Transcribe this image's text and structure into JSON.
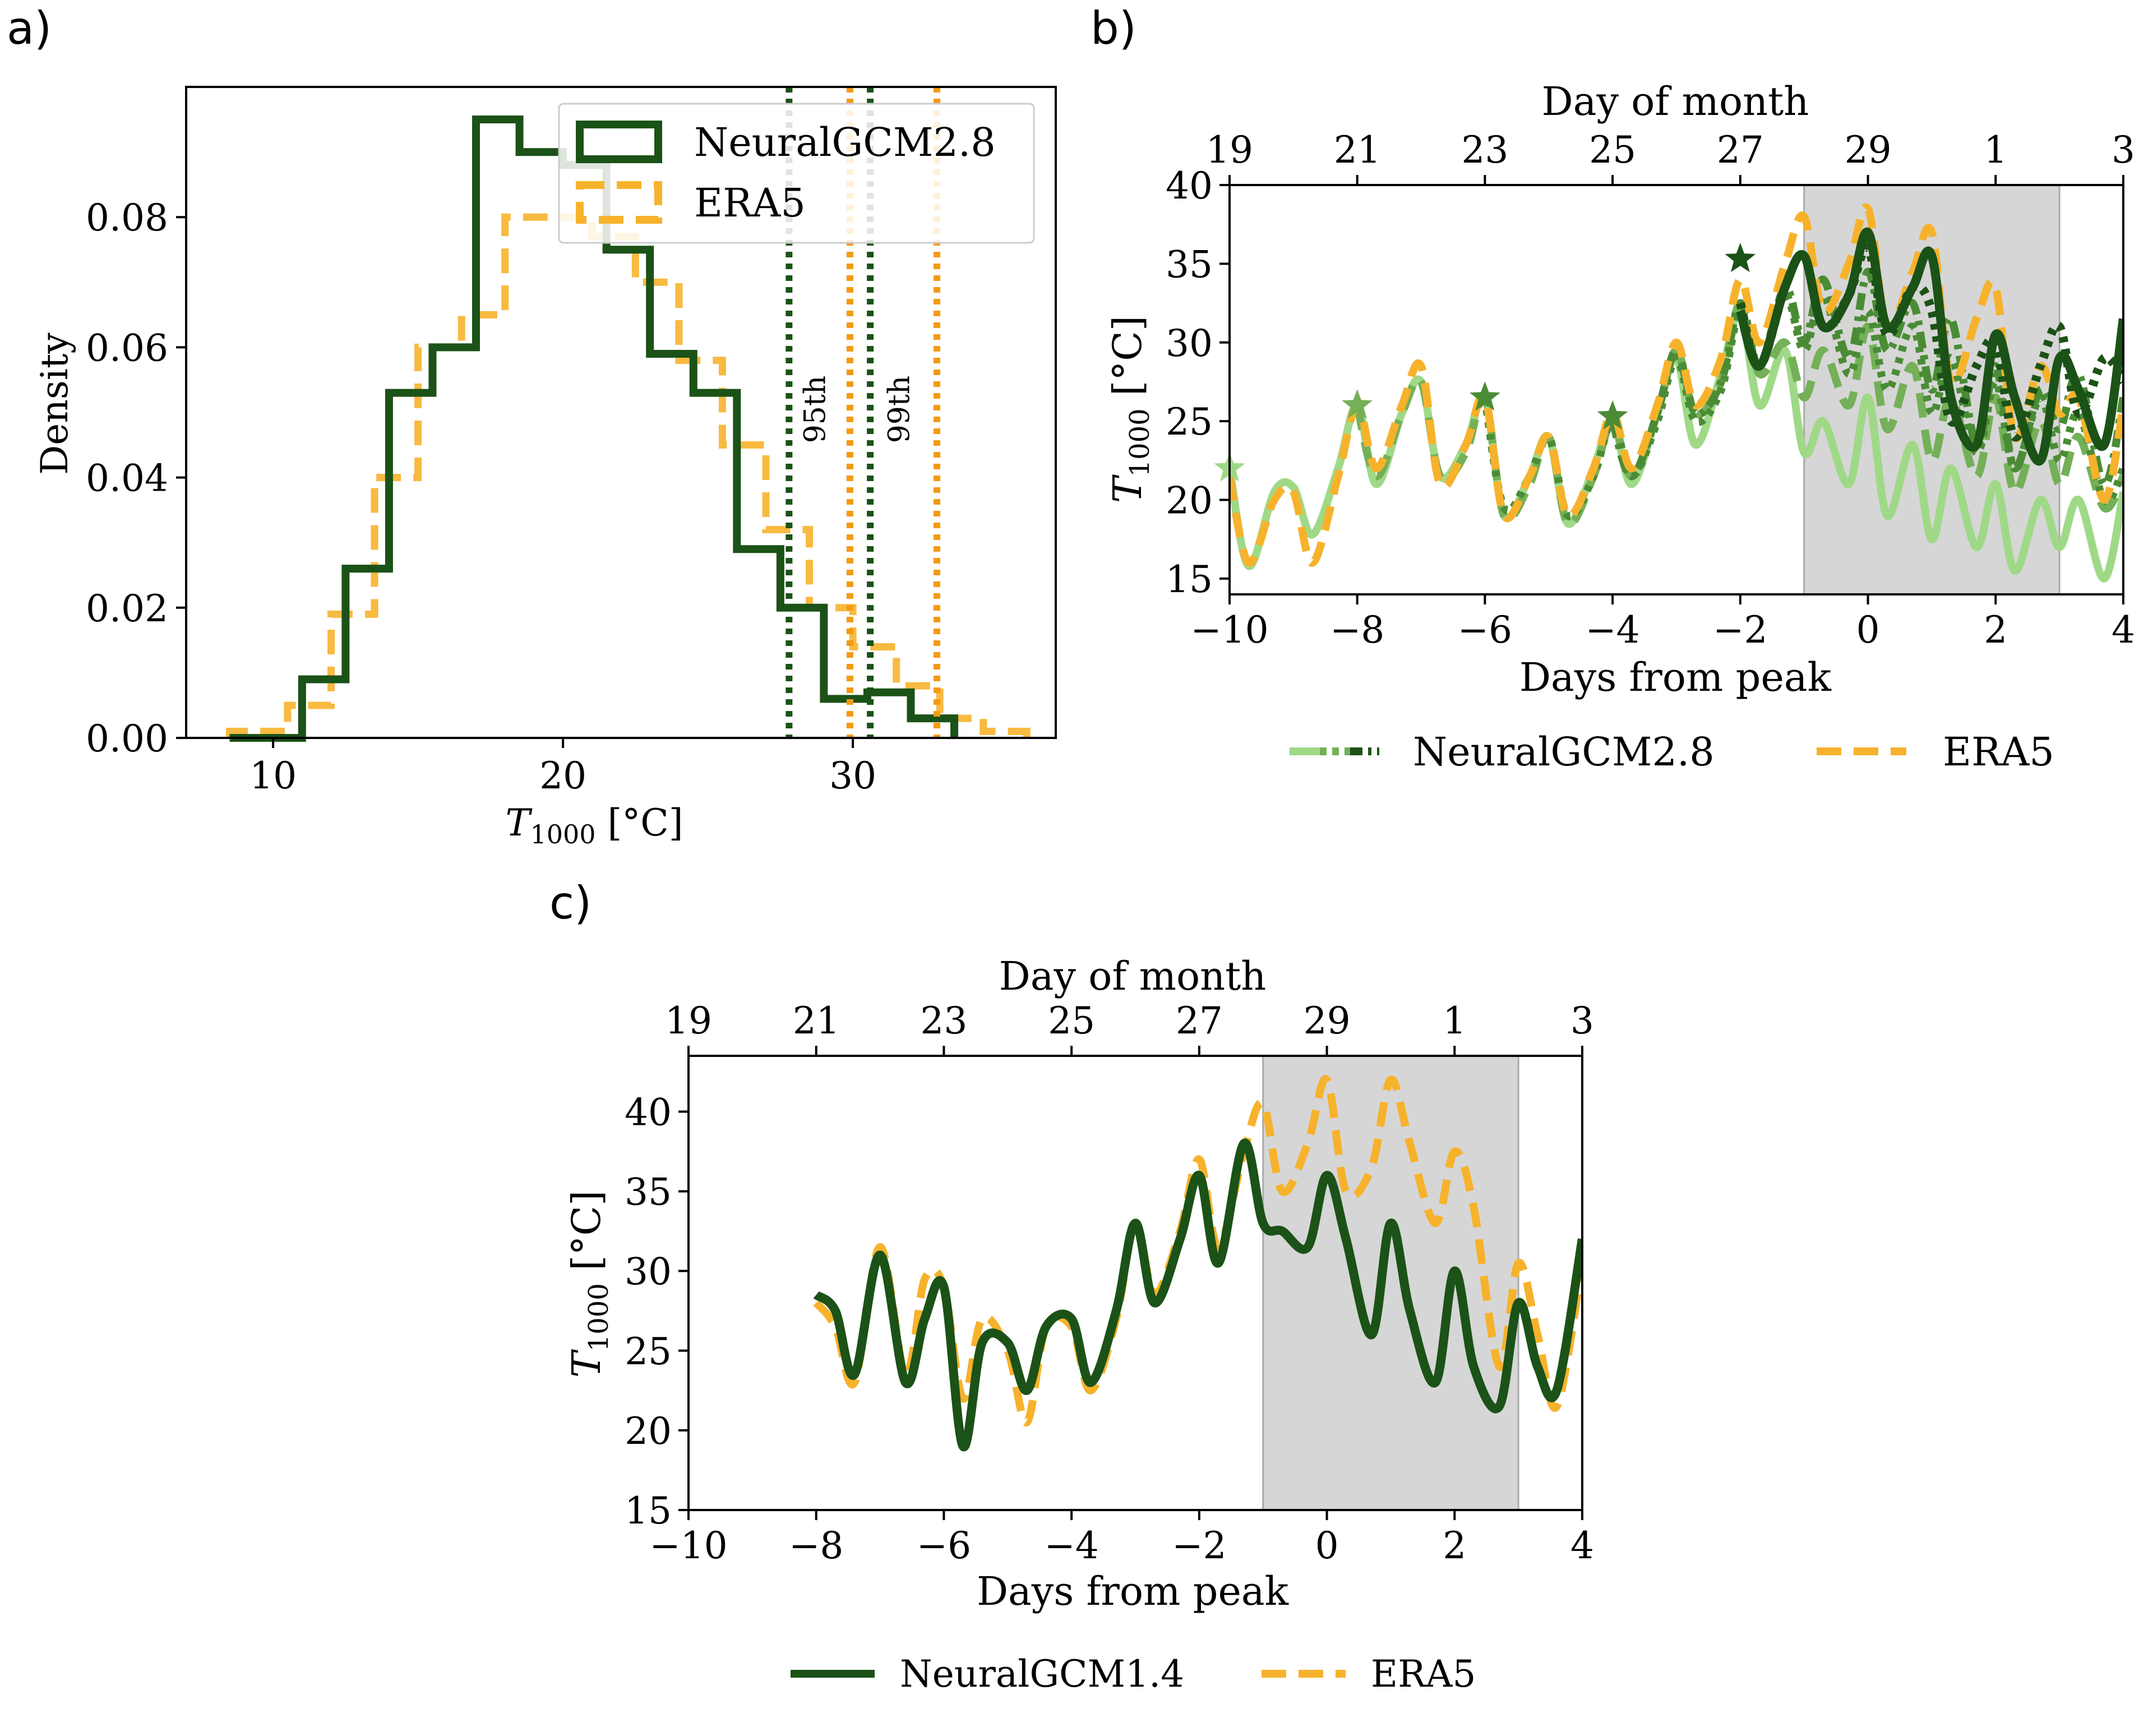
{
  "figure": {
    "panel_labels": [
      "a)",
      "b)",
      "c)"
    ]
  },
  "colors": {
    "neural_dark": "#1b5217",
    "neural_mid": "#4a8c35",
    "neural_midlight": "#74b058",
    "neural_light": "#9fd988",
    "era5": "#f7b22c",
    "era5_dark": "#f39a12",
    "shade": "#d6d6d6"
  },
  "chart_data": [
    {
      "panel": "a)",
      "type": "histogram",
      "xlabel": "T",
      "xlabel_sub": "1000",
      "xlabel_unit": " [°C]",
      "ylabel": "Density",
      "xlim": [
        7,
        37
      ],
      "ylim": [
        0,
        0.1
      ],
      "xticks": [
        10,
        20,
        30
      ],
      "yticks": [
        0.0,
        0.02,
        0.04,
        0.06,
        0.08
      ],
      "ytick_labels": [
        "0.00",
        "0.02",
        "0.04",
        "0.06",
        "0.08"
      ],
      "legend": {
        "position": "upper right",
        "entries": [
          "NeuralGCM2.8",
          "ERA5"
        ]
      },
      "series": [
        {
          "name": "NeuralGCM2.8",
          "style": "solid",
          "edges": [
            8.5,
            11.0,
            12.5,
            14.0,
            15.5,
            17.0,
            18.5,
            20.0,
            21.5,
            23.0,
            24.5,
            26.0,
            27.5,
            29.0,
            30.5,
            32.0,
            33.5
          ],
          "values": [
            0.0,
            0.009,
            0.026,
            0.053,
            0.06,
            0.095,
            0.09,
            0.088,
            0.075,
            0.059,
            0.053,
            0.029,
            0.02,
            0.006,
            0.007,
            0.003
          ]
        },
        {
          "name": "ERA5",
          "style": "dashed",
          "edges": [
            8.5,
            10.5,
            12.0,
            13.5,
            15.0,
            16.5,
            18.0,
            19.5,
            21.0,
            22.5,
            24.0,
            25.5,
            27.0,
            28.5,
            30.0,
            31.5,
            33.0,
            34.5,
            36.0
          ],
          "values": [
            0.001,
            0.005,
            0.019,
            0.04,
            0.06,
            0.065,
            0.08,
            0.08,
            0.077,
            0.07,
            0.058,
            0.045,
            0.032,
            0.02,
            0.014,
            0.008,
            0.003,
            0.001
          ]
        }
      ],
      "percentile_lines": [
        {
          "label": "95th",
          "neural_x": 27.8,
          "era5_x": 29.9
        },
        {
          "label": "99th",
          "neural_x": 30.6,
          "era5_x": 32.9
        }
      ]
    },
    {
      "panel": "b)",
      "type": "line",
      "xlabel": "Days from peak",
      "ylabel": "T",
      "ylabel_sub": "1000",
      "ylabel_unit": " [°C]",
      "top_xlabel": "Day of month",
      "xlim": [
        -10,
        4
      ],
      "ylim": [
        14,
        40
      ],
      "xticks": [
        -10,
        -8,
        -6,
        -4,
        -2,
        0,
        2,
        4
      ],
      "xtick_labels": [
        "−10",
        "−8",
        "−6",
        "−4",
        "−2",
        "0",
        "2",
        "4"
      ],
      "yticks": [
        15,
        20,
        25,
        30,
        35,
        40
      ],
      "top_xticks": [
        "19",
        "21",
        "23",
        "25",
        "27",
        "29",
        "1",
        "3"
      ],
      "shaded_x": [
        -1,
        3
      ],
      "legend": {
        "position": "below",
        "entries": [
          "NeuralGCM2.8",
          "ERA5"
        ]
      },
      "series": [
        {
          "init": -10,
          "style": "solid",
          "tone": "light",
          "x": [
            -10,
            -9.7,
            -9.3,
            -9.0,
            -8.7,
            -8.3,
            -8.0,
            -7.7,
            -7.3,
            -7.0,
            -6.7,
            -6.3,
            -6.0,
            -5.7,
            -5.3,
            -5.0,
            -4.7,
            -4.3,
            -4.0,
            -3.7,
            -3.3,
            -3.0,
            -2.7,
            -2.3,
            -2.0,
            -1.7,
            -1.3,
            -1.0,
            -0.7,
            -0.3,
            0.0,
            0.3,
            0.7,
            1.0,
            1.3,
            1.7,
            2.0,
            2.3,
            2.7,
            3.0,
            3.3,
            3.7,
            4.0
          ],
          "y": [
            22,
            15.8,
            20.5,
            20.8,
            17.8,
            22.0,
            26.0,
            21.0,
            25.5,
            27.5,
            21.5,
            23.5,
            26.5,
            19.0,
            21.5,
            24.0,
            18.5,
            22.0,
            25.0,
            21.0,
            25.5,
            29.0,
            23.5,
            28.0,
            32.0,
            26.0,
            29.5,
            23.0,
            25.0,
            21.0,
            26.5,
            19.0,
            23.5,
            17.5,
            22.0,
            17.0,
            21.0,
            15.5,
            20.0,
            17.0,
            20.0,
            15.0,
            20.5
          ]
        },
        {
          "init": -8,
          "style": "dashed",
          "tone": "midlight",
          "x": [
            -8.0,
            -7.7,
            -7.3,
            -7.0,
            -6.7,
            -6.3,
            -6.0,
            -5.7,
            -5.3,
            -5.0,
            -4.7,
            -4.3,
            -4.0,
            -3.7,
            -3.3,
            -3.0,
            -2.7,
            -2.3,
            -2.0,
            -1.7,
            -1.3,
            -1.0,
            -0.7,
            -0.3,
            0.0,
            0.3,
            0.7,
            1.0,
            1.3,
            1.7,
            2.0,
            2.3,
            2.7,
            3.0,
            3.3,
            3.7,
            4.0
          ],
          "y": [
            26.0,
            21.5,
            25.5,
            27.5,
            21.5,
            23.0,
            26.5,
            19.0,
            21.0,
            24.0,
            18.5,
            21.5,
            25.0,
            21.5,
            25.5,
            29.5,
            25.5,
            27.5,
            32.5,
            28.0,
            30.0,
            26.5,
            29.5,
            26.0,
            31.0,
            24.5,
            28.5,
            22.5,
            26.5,
            21.5,
            26.5,
            20.5,
            25.0,
            21.0,
            24.0,
            19.5,
            21.5
          ]
        },
        {
          "init": -6,
          "style": "dotted",
          "tone": "mid",
          "x": [
            -6.0,
            -5.7,
            -5.3,
            -5.0,
            -4.7,
            -4.3,
            -4.0,
            -3.7,
            -3.3,
            -3.0,
            -2.7,
            -2.3,
            -2.0,
            -1.7,
            -1.3,
            -1.0,
            -0.7,
            -0.3,
            0.0,
            0.3,
            0.7,
            1.0,
            1.3,
            1.7,
            2.0,
            2.3,
            2.7,
            3.0,
            3.3,
            3.7,
            4.0
          ],
          "y": [
            26.5,
            19.5,
            21.5,
            24.0,
            19.0,
            21.5,
            25.0,
            21.5,
            25.0,
            29.0,
            25.0,
            27.0,
            32.0,
            28.5,
            33.0,
            29.5,
            33.0,
            28.0,
            32.0,
            27.0,
            31.0,
            25.5,
            29.0,
            23.0,
            27.5,
            22.0,
            26.5,
            22.5,
            25.5,
            20.0,
            22.0
          ]
        },
        {
          "init": -4,
          "style": "dashdot",
          "tone": "mid",
          "x": [
            -4.0,
            -3.7,
            -3.3,
            -3.0,
            -2.7,
            -2.3,
            -2.0,
            -1.7,
            -1.3,
            -1.0,
            -0.7,
            -0.3,
            0.0,
            0.3,
            0.7,
            1.0,
            1.3,
            1.7,
            2.0,
            2.3,
            2.7,
            3.0,
            3.3,
            3.7,
            4.0
          ],
          "y": [
            25.0,
            21.5,
            25.5,
            29.5,
            25.5,
            27.5,
            32.5,
            28.5,
            33.5,
            30.0,
            34.0,
            29.0,
            34.5,
            29.5,
            32.5,
            27.0,
            31.5,
            23.5,
            28.5,
            22.0,
            27.0,
            24.5,
            28.0,
            21.0,
            26.5
          ]
        },
        {
          "init": -2,
          "style": "solid",
          "tone": "dark",
          "x": [
            -2.0,
            -1.7,
            -1.3,
            -1.0,
            -0.7,
            -0.3,
            0.0,
            0.3,
            0.7,
            1.0,
            1.3,
            1.7,
            2.0,
            2.3,
            2.7,
            3.0,
            3.3,
            3.7,
            4.0
          ],
          "y": [
            32.0,
            28.5,
            33.5,
            35.5,
            31.0,
            33.0,
            37.0,
            31.0,
            33.5,
            35.5,
            26.5,
            23.5,
            30.5,
            26.5,
            22.5,
            29.0,
            27.0,
            23.5,
            31.5
          ]
        },
        {
          "init": -6,
          "style": "dotted",
          "tone": "dark",
          "x": [
            -2.0,
            -1.7,
            -1.3,
            -1.0,
            -0.7,
            -0.3,
            0.0,
            0.3,
            0.7,
            1.0,
            1.3,
            1.7,
            2.0,
            2.3,
            2.7,
            3.0,
            3.3,
            3.7,
            4.0
          ],
          "y": [
            32.5,
            28.5,
            33.5,
            35.5,
            31.0,
            33.0,
            36.0,
            30.5,
            33.5,
            32.0,
            25.0,
            28.5,
            30.0,
            24.0,
            28.5,
            31.0,
            25.5,
            29.0,
            27.5
          ]
        },
        {
          "name": "ERA5",
          "style": "dashed",
          "tone": "era5",
          "x": [
            -10.0,
            -9.7,
            -9.3,
            -9.0,
            -8.7,
            -8.3,
            -8.0,
            -7.7,
            -7.3,
            -7.0,
            -6.7,
            -6.3,
            -6.0,
            -5.7,
            -5.3,
            -5.0,
            -4.7,
            -4.3,
            -4.0,
            -3.7,
            -3.3,
            -3.0,
            -2.7,
            -2.3,
            -2.0,
            -1.7,
            -1.3,
            -1.0,
            -0.7,
            -0.3,
            0.0,
            0.3,
            0.7,
            1.0,
            1.3,
            1.7,
            2.0,
            2.3,
            2.7,
            3.0,
            3.3,
            3.7,
            4.0
          ],
          "y": [
            21.5,
            16.0,
            20.0,
            20.5,
            16.0,
            21.5,
            26.0,
            22.0,
            26.0,
            28.5,
            21.0,
            23.5,
            26.5,
            19.0,
            21.5,
            24.0,
            19.0,
            22.0,
            25.5,
            22.0,
            26.0,
            30.0,
            26.0,
            29.0,
            34.0,
            30.0,
            35.0,
            38.0,
            32.0,
            35.0,
            38.5,
            31.0,
            34.5,
            37.0,
            27.5,
            31.5,
            33.5,
            24.0,
            28.5,
            25.5,
            26.5,
            20.0,
            26.0
          ]
        }
      ],
      "init_markers": [
        {
          "x": -10,
          "y": 22.0,
          "tone": "light"
        },
        {
          "x": -8,
          "y": 26.0,
          "tone": "midlight"
        },
        {
          "x": -6,
          "y": 26.5,
          "tone": "mid"
        },
        {
          "x": -4,
          "y": 25.3,
          "tone": "mid"
        },
        {
          "x": -2,
          "y": 35.3,
          "tone": "dark"
        }
      ]
    },
    {
      "panel": "c)",
      "type": "line",
      "xlabel": "Days from peak",
      "ylabel": "T",
      "ylabel_sub": "1000",
      "ylabel_unit": " [°C]",
      "top_xlabel": "Day of month",
      "xlim": [
        -10,
        4
      ],
      "ylim": [
        15,
        43.5
      ],
      "xticks": [
        -10,
        -8,
        -6,
        -4,
        -2,
        0,
        2,
        4
      ],
      "xtick_labels": [
        "−10",
        "−8",
        "−6",
        "−4",
        "−2",
        "0",
        "2",
        "4"
      ],
      "yticks": [
        15,
        20,
        25,
        30,
        35,
        40
      ],
      "top_xticks": [
        "19",
        "21",
        "23",
        "25",
        "27",
        "29",
        "1",
        "3"
      ],
      "shaded_x": [
        -1,
        3
      ],
      "legend": {
        "position": "below",
        "entries": [
          "NeuralGCM1.4",
          "ERA5"
        ]
      },
      "series": [
        {
          "name": "NeuralGCM1.4",
          "style": "solid",
          "tone": "dark",
          "x": [
            -8.0,
            -7.7,
            -7.4,
            -7.0,
            -6.6,
            -6.3,
            -6.0,
            -5.7,
            -5.4,
            -5.0,
            -4.7,
            -4.4,
            -4.0,
            -3.7,
            -3.3,
            -3.0,
            -2.7,
            -2.3,
            -2.0,
            -1.7,
            -1.3,
            -1.0,
            -0.7,
            -0.3,
            0.0,
            0.3,
            0.7,
            1.0,
            1.3,
            1.7,
            2.0,
            2.3,
            2.7,
            3.0,
            3.3,
            3.6,
            4.0
          ],
          "y": [
            28.5,
            27.5,
            23.5,
            31.0,
            23.0,
            27.0,
            29.0,
            19.0,
            25.5,
            25.5,
            22.5,
            26.5,
            27.0,
            23.0,
            27.5,
            33.0,
            28.0,
            32.0,
            36.0,
            30.5,
            38.0,
            33.0,
            32.5,
            31.5,
            36.0,
            32.0,
            26.0,
            33.0,
            27.5,
            23.0,
            30.0,
            24.0,
            21.5,
            28.0,
            24.0,
            22.5,
            32.0
          ]
        },
        {
          "name": "ERA5",
          "style": "dashed",
          "tone": "era5",
          "x": [
            -8.0,
            -7.7,
            -7.4,
            -7.0,
            -6.6,
            -6.3,
            -6.0,
            -5.7,
            -5.4,
            -5.0,
            -4.7,
            -4.4,
            -4.0,
            -3.7,
            -3.3,
            -3.0,
            -2.7,
            -2.3,
            -2.0,
            -1.7,
            -1.3,
            -1.0,
            -0.7,
            -0.3,
            0.0,
            0.3,
            0.7,
            1.0,
            1.3,
            1.7,
            2.0,
            2.3,
            2.7,
            3.0,
            3.3,
            3.6,
            4.0
          ],
          "y": [
            28.0,
            26.5,
            23.0,
            31.5,
            23.5,
            29.5,
            29.0,
            22.0,
            27.0,
            25.0,
            20.5,
            26.5,
            26.5,
            22.5,
            27.0,
            33.0,
            28.5,
            32.5,
            37.0,
            31.5,
            37.5,
            40.5,
            35.0,
            38.0,
            42.0,
            35.0,
            36.5,
            42.0,
            38.0,
            33.0,
            37.5,
            34.0,
            24.0,
            30.5,
            26.0,
            21.5,
            30.5
          ]
        }
      ]
    }
  ]
}
